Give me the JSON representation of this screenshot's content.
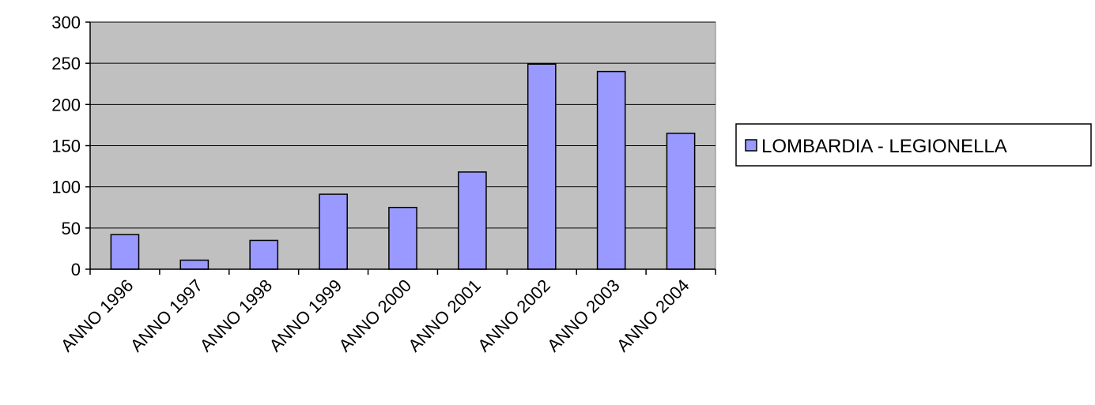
{
  "chart_data": {
    "type": "bar",
    "title": "",
    "xlabel": "",
    "ylabel": "",
    "categories": [
      "ANNO 1996",
      "ANNO 1997",
      "ANNO 1998",
      "ANNO 1999",
      "ANNO 2000",
      "ANNO 2001",
      "ANNO 2002",
      "ANNO 2003",
      "ANNO 2004"
    ],
    "series": [
      {
        "name": "LOMBARDIA - LEGIONELLA",
        "values": [
          42,
          11,
          35,
          91,
          75,
          118,
          249,
          240,
          165
        ],
        "color": "#9999ff"
      }
    ],
    "ylim": [
      0,
      300
    ],
    "yticks": [
      0,
      50,
      100,
      150,
      200,
      250,
      300
    ],
    "grid": true,
    "legend_position": "right",
    "plot_background": "#c0c0c0"
  }
}
